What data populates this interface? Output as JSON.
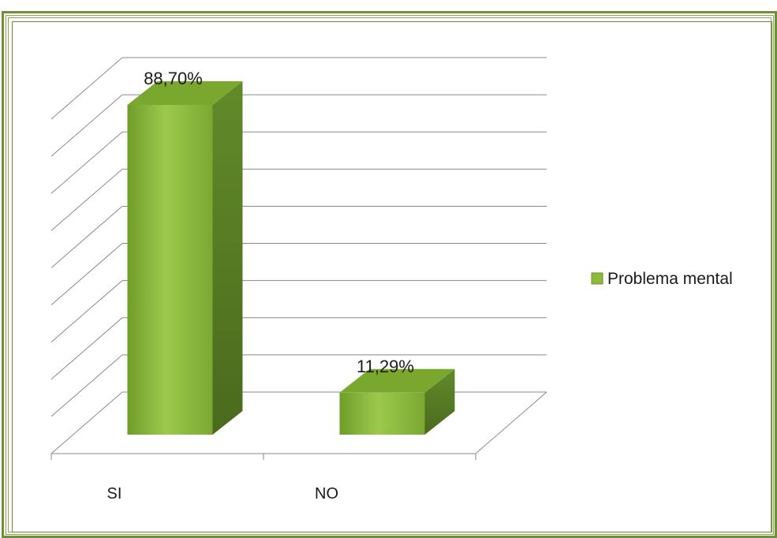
{
  "chart_data": {
    "type": "bar",
    "categories": [
      "SI",
      "NO"
    ],
    "series": [
      {
        "name": "Problema mental",
        "values": [
          88.7,
          11.29
        ]
      }
    ],
    "data_labels": [
      "88,70%",
      "11,29%"
    ],
    "ylim": [
      0,
      100
    ],
    "grid": true,
    "legend_position": "right",
    "three_d": true,
    "colors": {
      "front": "#8cbb3c",
      "side": "#567a23",
      "top": "#7aa82f",
      "grid": "#8a8a8a",
      "frame": "#6f8f3b"
    }
  }
}
